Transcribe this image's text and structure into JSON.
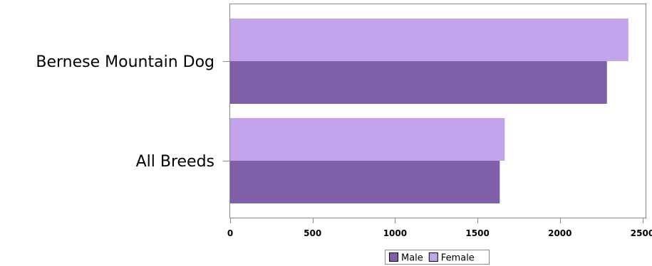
{
  "chart_data": {
    "type": "bar",
    "orientation": "horizontal",
    "categories": [
      "Bernese Mountain Dog",
      "All Breeds"
    ],
    "series": [
      {
        "name": "Female",
        "values": [
          2415,
          1665
        ]
      },
      {
        "name": "Male",
        "values": [
          2285,
          1635
        ]
      }
    ],
    "x_ticks": [
      0,
      500,
      1000,
      1500,
      2000,
      2500
    ],
    "xlim": [
      0,
      2530
    ],
    "legend": {
      "position": "bottom-center",
      "order": [
        "Male",
        "Female"
      ]
    },
    "colors": {
      "Male": "#7f5fa8",
      "Female": "#c3a3eb"
    },
    "title": "",
    "xlabel": "",
    "ylabel": ""
  }
}
